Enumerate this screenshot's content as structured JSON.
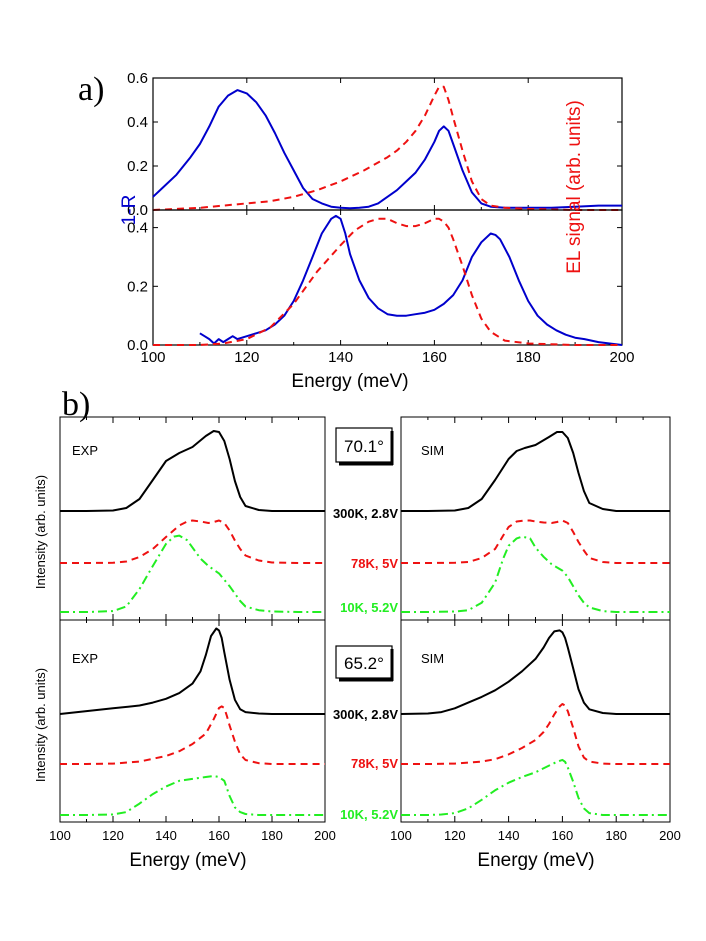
{
  "panel_a": {
    "label": "a)",
    "y_left_label": "1-R",
    "y_right_label": "EL signal (arb. units)",
    "x_label": "Energy (meV)"
  },
  "panel_b": {
    "label": "b)",
    "y_label": "Intensity (arb. units)",
    "x_label": "Energy (meV)",
    "exp_label": "EXP",
    "sim_label": "SIM",
    "angle_top": "70.1°",
    "angle_bottom": "65.2°",
    "conditions": [
      "300K, 2.8V",
      "78K, 5V",
      "10K, 5.2V"
    ]
  },
  "colors": {
    "blue": "#0000cc",
    "red": "#ee1111",
    "green": "#22ee22",
    "black": "#000000"
  },
  "chart_data": [
    {
      "type": "line",
      "id": "a-top",
      "xlim": [
        100,
        200
      ],
      "ylim": [
        0,
        0.6
      ],
      "xticks": [
        100,
        120,
        140,
        160,
        180,
        200
      ],
      "yticks": [
        0.0,
        0.2,
        0.4,
        0.6
      ],
      "ytick_labels": [
        "0.0",
        "0.2",
        "0.4",
        "0.6"
      ],
      "series": [
        {
          "name": "1-R",
          "color": "blue",
          "style": "solid",
          "x": [
            100,
            102,
            105,
            108,
            110,
            112,
            114,
            116,
            118,
            120,
            122,
            124,
            126,
            128,
            130,
            132,
            134,
            136,
            138,
            140,
            142,
            144,
            146,
            148,
            150,
            152,
            154,
            156,
            158,
            160,
            161,
            162,
            163,
            164,
            166,
            168,
            170,
            172,
            175,
            180,
            185,
            190,
            195,
            200
          ],
          "y": [
            0.06,
            0.1,
            0.16,
            0.24,
            0.3,
            0.38,
            0.47,
            0.52,
            0.545,
            0.53,
            0.49,
            0.43,
            0.35,
            0.26,
            0.18,
            0.1,
            0.05,
            0.03,
            0.015,
            0.01,
            0.008,
            0.01,
            0.015,
            0.03,
            0.06,
            0.09,
            0.13,
            0.17,
            0.23,
            0.31,
            0.36,
            0.38,
            0.36,
            0.3,
            0.18,
            0.08,
            0.03,
            0.015,
            0.01,
            0.01,
            0.01,
            0.015,
            0.02,
            0.02
          ]
        },
        {
          "name": "EL",
          "color": "red",
          "style": "dashed",
          "x": [
            100,
            105,
            110,
            115,
            120,
            125,
            130,
            135,
            140,
            145,
            150,
            152,
            154,
            156,
            158,
            160,
            161,
            162,
            163,
            164,
            166,
            168,
            170,
            172,
            175,
            180,
            190,
            200
          ],
          "y": [
            0,
            0.005,
            0.01,
            0.02,
            0.03,
            0.04,
            0.06,
            0.09,
            0.13,
            0.18,
            0.24,
            0.27,
            0.31,
            0.36,
            0.43,
            0.52,
            0.56,
            0.56,
            0.5,
            0.42,
            0.27,
            0.13,
            0.05,
            0.02,
            0.01,
            0.005,
            0,
            0
          ]
        }
      ]
    },
    {
      "type": "line",
      "id": "a-bottom",
      "xlim": [
        100,
        200
      ],
      "ylim": [
        0,
        0.46
      ],
      "xticks": [
        100,
        120,
        140,
        160,
        180,
        200
      ],
      "xtick_labels": [
        "100",
        "120",
        "140",
        "160",
        "180",
        "200"
      ],
      "yticks": [
        0.0,
        0.2,
        0.4
      ],
      "ytick_labels": [
        "0.0",
        "0.2",
        "0.4"
      ],
      "series": [
        {
          "name": "1-R",
          "color": "blue",
          "style": "solid",
          "x": [
            110,
            111,
            112,
            113,
            114,
            115,
            116,
            117,
            118,
            120,
            122,
            124,
            126,
            128,
            130,
            132,
            134,
            136,
            138,
            139,
            140,
            141,
            142,
            144,
            146,
            148,
            150,
            152,
            154,
            156,
            158,
            160,
            162,
            164,
            166,
            168,
            170,
            172,
            173,
            174,
            176,
            178,
            180,
            182,
            184,
            186,
            188,
            190,
            192,
            195,
            200
          ],
          "y": [
            0.04,
            0.03,
            0.02,
            0.005,
            0.02,
            0.01,
            0.02,
            0.03,
            0.02,
            0.03,
            0.04,
            0.05,
            0.07,
            0.1,
            0.15,
            0.22,
            0.3,
            0.38,
            0.43,
            0.44,
            0.43,
            0.38,
            0.31,
            0.22,
            0.16,
            0.125,
            0.105,
            0.1,
            0.1,
            0.105,
            0.11,
            0.12,
            0.14,
            0.17,
            0.22,
            0.3,
            0.35,
            0.38,
            0.375,
            0.36,
            0.3,
            0.22,
            0.15,
            0.1,
            0.07,
            0.05,
            0.035,
            0.025,
            0.02,
            0.01,
            0.0
          ]
        },
        {
          "name": "EL",
          "color": "red",
          "style": "dashed",
          "x": [
            100,
            110,
            115,
            120,
            125,
            130,
            135,
            140,
            143,
            146,
            148,
            150,
            152,
            154,
            156,
            158,
            160,
            161,
            162,
            163,
            164,
            166,
            168,
            170,
            172,
            175,
            180,
            190,
            200
          ],
          "y": [
            0,
            0,
            0.005,
            0.02,
            0.06,
            0.14,
            0.25,
            0.34,
            0.39,
            0.42,
            0.43,
            0.43,
            0.415,
            0.405,
            0.405,
            0.415,
            0.43,
            0.43,
            0.42,
            0.4,
            0.36,
            0.27,
            0.17,
            0.09,
            0.045,
            0.015,
            0.005,
            0,
            0
          ]
        }
      ]
    },
    {
      "type": "line",
      "id": "b-exp-top",
      "xlim": [
        100,
        200
      ],
      "series": [
        {
          "name": "300K, 2.8V",
          "color": "black",
          "style": "solid",
          "x": [
            100,
            110,
            120,
            125,
            130,
            135,
            140,
            145,
            150,
            155,
            158,
            160,
            162,
            164,
            166,
            168,
            170,
            175,
            180,
            190,
            200
          ],
          "y": [
            0,
            0,
            0.005,
            0.03,
            0.12,
            0.31,
            0.5,
            0.58,
            0.64,
            0.75,
            0.8,
            0.79,
            0.7,
            0.52,
            0.3,
            0.14,
            0.05,
            0.01,
            0,
            0,
            0
          ]
        },
        {
          "name": "78K, 5V",
          "color": "red",
          "style": "dashed",
          "x": [
            100,
            110,
            120,
            125,
            130,
            135,
            140,
            145,
            148,
            150,
            153,
            156,
            158,
            160,
            162,
            164,
            166,
            168,
            170,
            175,
            180,
            190,
            200
          ],
          "y": [
            0,
            0,
            0.005,
            0.03,
            0.12,
            0.28,
            0.52,
            0.75,
            0.83,
            0.85,
            0.83,
            0.8,
            0.82,
            0.85,
            0.8,
            0.65,
            0.45,
            0.28,
            0.15,
            0.05,
            0.01,
            0,
            0
          ]
        },
        {
          "name": "10K, 5.2V",
          "color": "green",
          "style": "dashdot",
          "x": [
            100,
            110,
            120,
            125,
            130,
            135,
            140,
            143,
            145,
            148,
            150,
            153,
            156,
            160,
            162,
            164,
            166,
            168,
            170,
            175,
            180,
            190,
            200
          ],
          "y": [
            0,
            0,
            0.01,
            0.06,
            0.25,
            0.5,
            0.74,
            0.82,
            0.83,
            0.78,
            0.7,
            0.58,
            0.5,
            0.42,
            0.35,
            0.28,
            0.2,
            0.12,
            0.06,
            0.02,
            0.005,
            0,
            0
          ]
        }
      ]
    },
    {
      "type": "line",
      "id": "b-sim-top",
      "xlim": [
        100,
        200
      ],
      "series": [
        {
          "name": "300K, 2.8V",
          "color": "black",
          "style": "solid",
          "x": [
            100,
            110,
            120,
            125,
            130,
            135,
            140,
            143,
            146,
            150,
            155,
            158,
            160,
            162,
            164,
            166,
            168,
            170,
            175,
            180,
            190,
            200
          ],
          "y": [
            0,
            0,
            0.005,
            0.03,
            0.12,
            0.31,
            0.52,
            0.6,
            0.63,
            0.66,
            0.74,
            0.79,
            0.79,
            0.73,
            0.58,
            0.38,
            0.2,
            0.08,
            0.02,
            0,
            0,
            0
          ]
        },
        {
          "name": "78K, 5V",
          "color": "red",
          "style": "dashed",
          "x": [
            100,
            110,
            120,
            125,
            130,
            135,
            138,
            140,
            143,
            146,
            148,
            150,
            153,
            156,
            158,
            160,
            162,
            164,
            166,
            168,
            170,
            175,
            180,
            190,
            200
          ],
          "y": [
            0,
            0,
            0.005,
            0.02,
            0.1,
            0.28,
            0.55,
            0.72,
            0.83,
            0.85,
            0.85,
            0.83,
            0.81,
            0.8,
            0.82,
            0.85,
            0.8,
            0.62,
            0.42,
            0.25,
            0.1,
            0.02,
            0,
            0,
            0
          ]
        },
        {
          "name": "10K, 5.2V",
          "color": "green",
          "style": "dashdot",
          "x": [
            100,
            110,
            120,
            125,
            130,
            135,
            138,
            140,
            143,
            145,
            148,
            150,
            153,
            156,
            160,
            162,
            164,
            166,
            168,
            170,
            175,
            180,
            190,
            200
          ],
          "y": [
            0,
            0,
            0.005,
            0.02,
            0.1,
            0.32,
            0.58,
            0.72,
            0.8,
            0.82,
            0.8,
            0.7,
            0.6,
            0.52,
            0.45,
            0.38,
            0.28,
            0.18,
            0.1,
            0.05,
            0.01,
            0,
            0,
            0
          ]
        }
      ]
    },
    {
      "type": "line",
      "id": "b-exp-bottom",
      "xlim": [
        100,
        200
      ],
      "series": [
        {
          "name": "300K, 2.8V",
          "color": "black",
          "style": "solid",
          "x": [
            100,
            110,
            120,
            130,
            135,
            140,
            145,
            150,
            153,
            155,
            157,
            159,
            160,
            161,
            162,
            164,
            166,
            168,
            170,
            175,
            180,
            190,
            200
          ],
          "y": [
            0.0,
            0.03,
            0.06,
            0.09,
            0.12,
            0.16,
            0.22,
            0.32,
            0.45,
            0.62,
            0.82,
            0.9,
            0.88,
            0.8,
            0.65,
            0.36,
            0.15,
            0.05,
            0.02,
            0.005,
            0,
            0,
            0
          ]
        },
        {
          "name": "78K, 5V",
          "color": "red",
          "style": "dashed",
          "x": [
            100,
            110,
            120,
            130,
            140,
            145,
            150,
            155,
            158,
            160,
            161,
            162,
            163,
            164,
            166,
            168,
            170,
            175,
            180,
            190,
            200
          ],
          "y": [
            0,
            0,
            0.005,
            0.03,
            0.1,
            0.16,
            0.25,
            0.38,
            0.56,
            0.7,
            0.72,
            0.7,
            0.6,
            0.48,
            0.28,
            0.12,
            0.05,
            0.01,
            0,
            0,
            0
          ]
        },
        {
          "name": "10K, 5.2V",
          "color": "green",
          "style": "dashdot",
          "x": [
            100,
            110,
            120,
            125,
            130,
            135,
            140,
            145,
            150,
            155,
            158,
            160,
            162,
            164,
            166,
            168,
            170,
            175,
            180,
            190,
            200
          ],
          "y": [
            0,
            0,
            0.005,
            0.03,
            0.12,
            0.22,
            0.3,
            0.36,
            0.38,
            0.4,
            0.41,
            0.4,
            0.36,
            0.2,
            0.08,
            0.03,
            0.01,
            0,
            0,
            0,
            0
          ]
        }
      ]
    },
    {
      "type": "line",
      "id": "b-sim-bottom",
      "xlim": [
        100,
        200
      ],
      "series": [
        {
          "name": "300K, 2.8V",
          "color": "black",
          "style": "solid",
          "x": [
            100,
            110,
            115,
            120,
            125,
            130,
            135,
            140,
            145,
            150,
            153,
            155,
            157,
            159,
            160,
            161,
            162,
            164,
            166,
            168,
            170,
            175,
            180,
            190,
            200
          ],
          "y": [
            0,
            0.005,
            0.02,
            0.06,
            0.12,
            0.18,
            0.25,
            0.34,
            0.45,
            0.58,
            0.7,
            0.8,
            0.87,
            0.88,
            0.86,
            0.8,
            0.7,
            0.48,
            0.26,
            0.12,
            0.05,
            0.01,
            0,
            0,
            0
          ]
        },
        {
          "name": "78K, 5V",
          "color": "red",
          "style": "dashed",
          "x": [
            100,
            110,
            120,
            130,
            135,
            140,
            145,
            150,
            153,
            155,
            157,
            159,
            160,
            161,
            162,
            164,
            166,
            168,
            170,
            175,
            180,
            190,
            200
          ],
          "y": [
            0,
            0,
            0.005,
            0.03,
            0.06,
            0.12,
            0.2,
            0.3,
            0.4,
            0.5,
            0.62,
            0.72,
            0.75,
            0.73,
            0.66,
            0.45,
            0.22,
            0.08,
            0.03,
            0.005,
            0,
            0,
            0
          ]
        },
        {
          "name": "10K, 5.2V",
          "color": "green",
          "style": "dashdot",
          "x": [
            100,
            110,
            115,
            120,
            125,
            130,
            135,
            140,
            145,
            150,
            155,
            158,
            160,
            161,
            162,
            164,
            166,
            168,
            170,
            175,
            180,
            190,
            200
          ],
          "y": [
            0,
            0,
            0.005,
            0.02,
            0.07,
            0.16,
            0.26,
            0.34,
            0.4,
            0.45,
            0.52,
            0.56,
            0.58,
            0.56,
            0.5,
            0.35,
            0.18,
            0.07,
            0.02,
            0,
            0,
            0,
            0
          ]
        }
      ]
    }
  ]
}
